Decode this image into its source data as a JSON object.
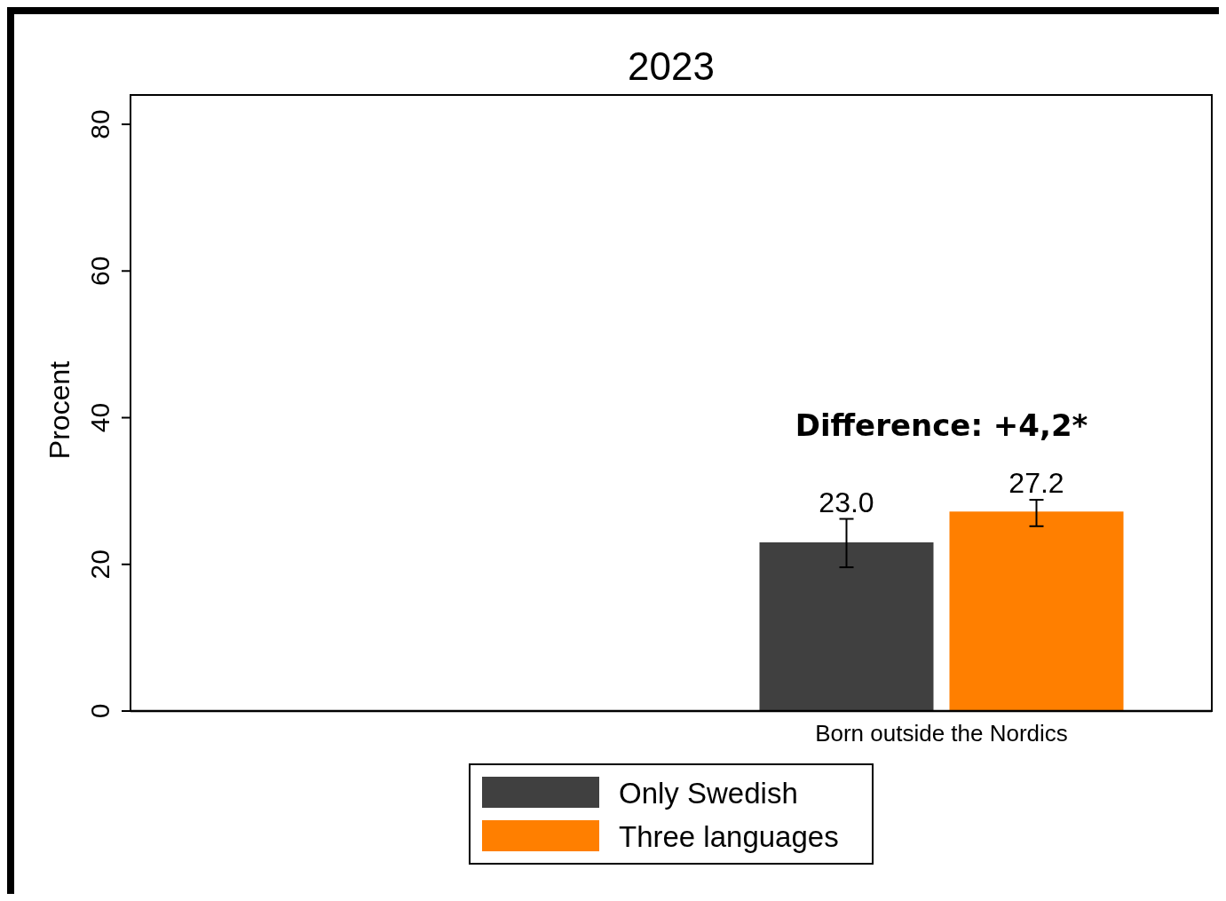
{
  "chart_data": {
    "type": "bar",
    "title": "2023",
    "ylabel": "Procent",
    "categories": [
      null,
      "Born outside the Nordics"
    ],
    "series": [
      {
        "name": "Only Swedish",
        "color": "#404040",
        "values": [
          null,
          23.0
        ],
        "errors": [
          null,
          [
            19.6,
            26.2
          ]
        ],
        "value_labels": [
          null,
          "23.0"
        ]
      },
      {
        "name": "Three languages",
        "color": "#ff7f00",
        "values": [
          null,
          27.2
        ],
        "errors": [
          null,
          [
            25.2,
            28.8
          ]
        ],
        "value_labels": [
          null,
          "27.2"
        ]
      }
    ],
    "ylim": [
      0,
      84
    ],
    "yticks": [
      0,
      20,
      40,
      60,
      80
    ],
    "grid": false,
    "legend": "bottom",
    "annotations": [
      "Difference: +4,2*"
    ]
  }
}
